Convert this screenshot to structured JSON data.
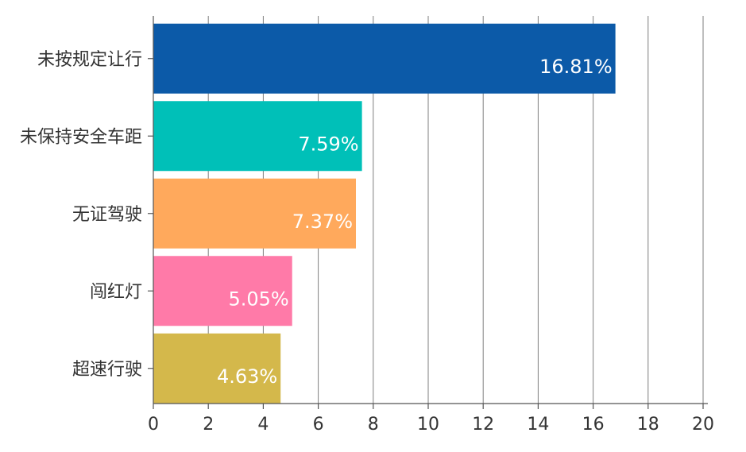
{
  "chart_data": {
    "type": "bar",
    "orientation": "horizontal",
    "categories": [
      "未按规定让行",
      "未保持安全车距",
      "无证驾驶",
      "闯红灯",
      "超速行驶"
    ],
    "values": [
      16.81,
      7.59,
      7.37,
      5.05,
      4.63
    ],
    "data_labels": [
      "16.81%",
      "7.59%",
      "7.37%",
      "5.05%",
      "4.63%"
    ],
    "colors": [
      "#0c5aa8",
      "#00c0b8",
      "#ffa95c",
      "#ff7aa8",
      "#d4b84b"
    ],
    "xlim": [
      0,
      20
    ],
    "x_ticks": [
      0,
      2,
      4,
      6,
      8,
      10,
      12,
      14,
      16,
      18,
      20
    ],
    "grid": true,
    "legend": "none"
  }
}
